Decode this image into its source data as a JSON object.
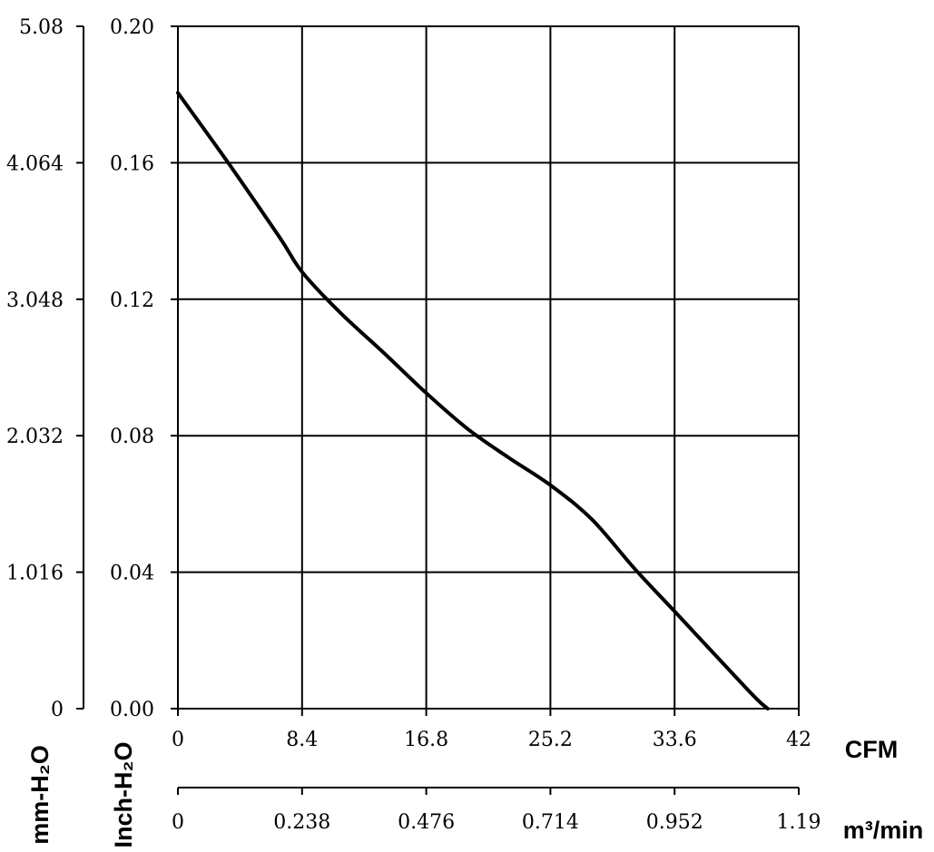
{
  "chart_data": {
    "type": "line",
    "x_primary": {
      "label": "CFM",
      "ticks": [
        "0",
        "8.4",
        "16.8",
        "25.2",
        "33.6",
        "42"
      ],
      "range": [
        0,
        42
      ]
    },
    "x_secondary": {
      "label": "m³/min",
      "ticks": [
        "0",
        "0.238",
        "0.476",
        "0.714",
        "0.952",
        "1.19"
      ],
      "range": [
        0,
        1.19
      ]
    },
    "y_primary": {
      "label": "Inch-H₂O",
      "ticks": [
        "0.00",
        "0.04",
        "0.08",
        "0.12",
        "0.16",
        "0.20"
      ],
      "range": [
        0,
        0.2
      ]
    },
    "y_secondary": {
      "label": "mm-H₂O",
      "ticks": [
        "0",
        "1.016",
        "2.032",
        "3.048",
        "4.064",
        "5.08"
      ],
      "range": [
        0,
        5.08
      ]
    },
    "grid": true,
    "series": [
      {
        "color": "#000000",
        "points": [
          [
            0,
            0.1805
          ],
          [
            3.4,
            0.16
          ],
          [
            6.9,
            0.138
          ],
          [
            8.4,
            0.128
          ],
          [
            11.0,
            0.116
          ],
          [
            14.0,
            0.104
          ],
          [
            16.8,
            0.0925
          ],
          [
            19.6,
            0.082
          ],
          [
            22.4,
            0.0735
          ],
          [
            25.2,
            0.0655
          ],
          [
            28.0,
            0.0555
          ],
          [
            30.9,
            0.041
          ],
          [
            33.6,
            0.0285
          ],
          [
            36.4,
            0.0155
          ],
          [
            39.0,
            0.0035
          ],
          [
            39.9,
            0.0
          ]
        ]
      }
    ]
  }
}
